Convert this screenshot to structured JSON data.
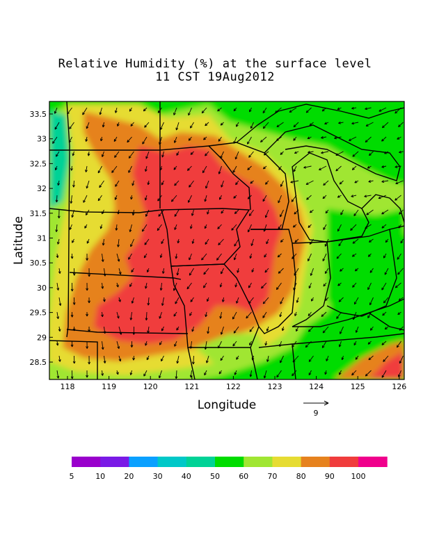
{
  "title": {
    "line1": "Relative Humidity (%) at the surface level",
    "line2": "11 CST 19Aug2012"
  },
  "map": {
    "xlabel": "Longitude",
    "ylabel": "Latitude",
    "x_ticks": [
      "118",
      "119",
      "120",
      "121",
      "122",
      "123",
      "124",
      "125",
      "126"
    ],
    "y_ticks": [
      "33.5",
      "33",
      "32.5",
      "32",
      "31.5",
      "31",
      "30.5",
      "30",
      "29.5",
      "29",
      "28.5"
    ],
    "vector_reference": {
      "value": "9"
    }
  },
  "legend": {
    "labels": [
      "5",
      "10",
      "20",
      "30",
      "40",
      "50",
      "60",
      "70",
      "80",
      "90",
      "100"
    ],
    "colors": [
      "#9900cc",
      "#7a1ae6",
      "#0aa0ff",
      "#00c8c8",
      "#00d296",
      "#00dc00",
      "#a0e632",
      "#e6dc32",
      "#e6821e",
      "#f03c3c",
      "#f0008c"
    ]
  },
  "field_colors": {
    "green": "#00dc00",
    "teal": "#00d296",
    "lightgreen": "#a0e632",
    "yellow": "#e6dc32",
    "orange": "#e6821e",
    "red": "#f03c3c"
  }
}
